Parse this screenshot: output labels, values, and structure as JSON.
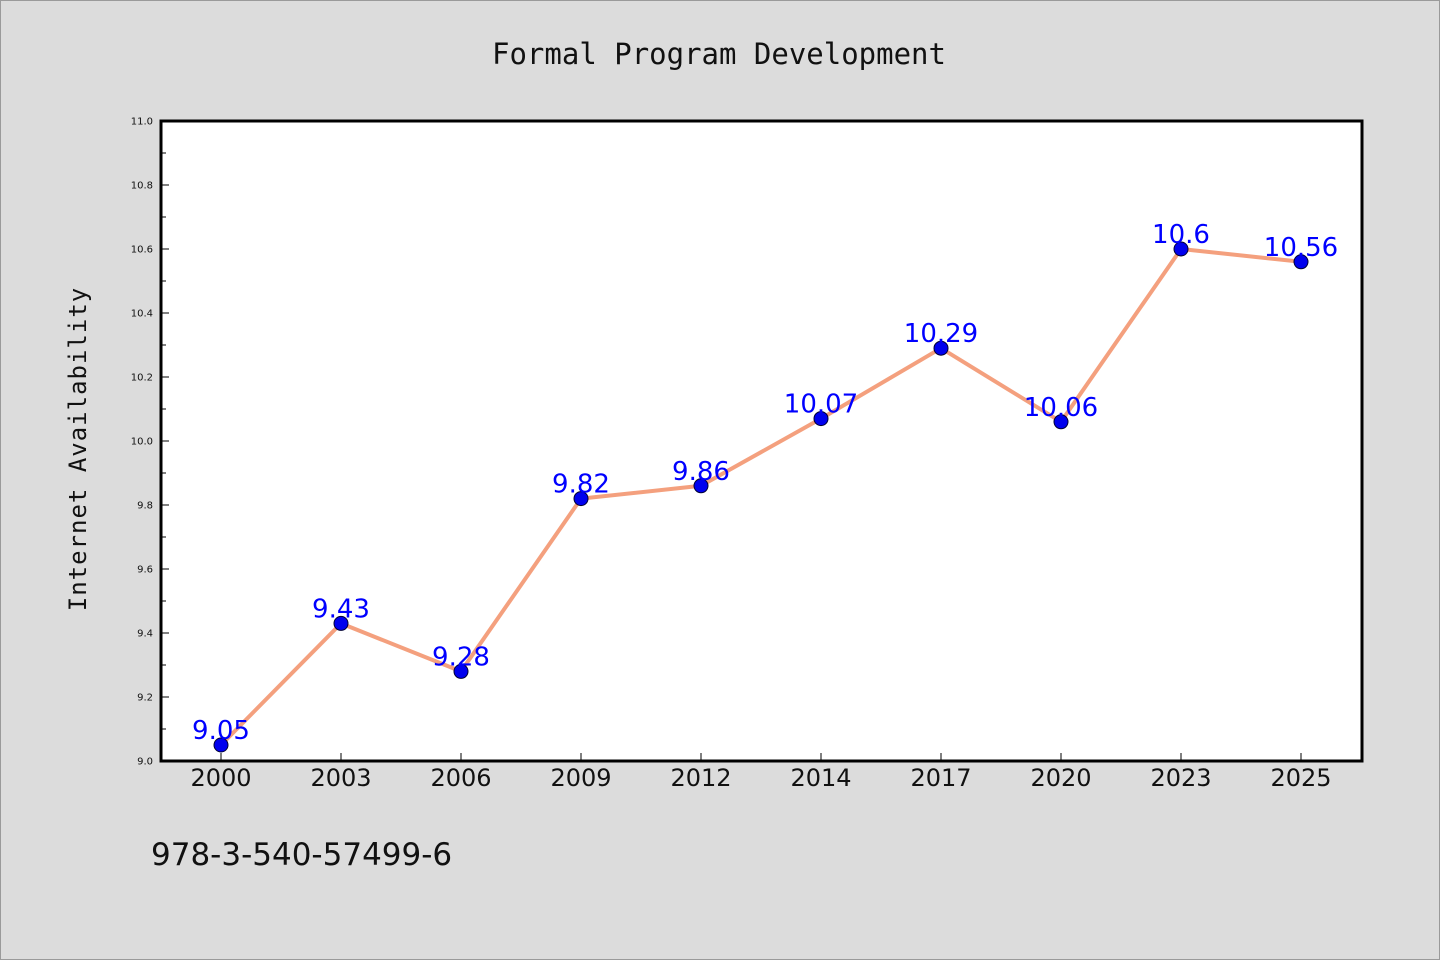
{
  "chart_data": {
    "type": "line",
    "title": "Formal Program Development",
    "xlabel": "",
    "ylabel": "Internet Availability",
    "categories": [
      "2000",
      "2003",
      "2006",
      "2009",
      "2012",
      "2014",
      "2017",
      "2020",
      "2023",
      "2025"
    ],
    "values": [
      9.05,
      9.43,
      9.28,
      9.82,
      9.86,
      10.07,
      10.29,
      10.06,
      10.6,
      10.56
    ],
    "data_labels": [
      "9.05",
      "9.43",
      "9.28",
      "9.82",
      "9.86",
      "10.07",
      "10.29",
      "10.06",
      "10.6",
      "10.56"
    ],
    "ylim": [
      9.0,
      11.0
    ],
    "yticks": [
      "9.0",
      "9.2",
      "9.4",
      "9.6",
      "9.8",
      "10.0",
      "10.2",
      "10.4",
      "10.6",
      "10.8",
      "11.0"
    ],
    "grid": false,
    "legend": "none",
    "colors": {
      "line": "#f4a07e",
      "marker": "#0000ee",
      "label": "#0000ff",
      "background": "#dcdcdc",
      "plot_background": "#ffffff"
    }
  },
  "footer": {
    "isbn": "978-3-540-57499-6"
  }
}
